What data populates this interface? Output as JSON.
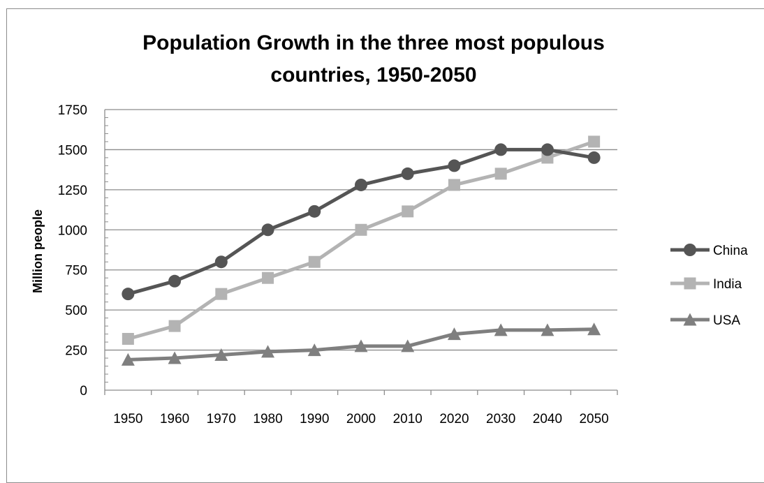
{
  "chart_data": {
    "type": "line",
    "title_lines": [
      "Population Growth in the three most populous",
      "countries, 1950-2050"
    ],
    "ylabel": "Million people",
    "xlabel": "",
    "ylim": [
      0,
      1750
    ],
    "yticks": [
      0,
      250,
      500,
      750,
      1000,
      1250,
      1500,
      1750
    ],
    "categories": [
      "1950",
      "1960",
      "1970",
      "1980",
      "1990",
      "2000",
      "2010",
      "2020",
      "2030",
      "2040",
      "2050"
    ],
    "grid": "horizontal major gridlines",
    "legend_position": "right",
    "series": [
      {
        "name": "China",
        "marker": "circle",
        "color": "#555555",
        "values": [
          600,
          680,
          800,
          1000,
          1115,
          1280,
          1350,
          1400,
          1500,
          1500,
          1450
        ]
      },
      {
        "name": "India",
        "marker": "square",
        "color": "#b3b3b3",
        "values": [
          320,
          400,
          600,
          700,
          800,
          1000,
          1115,
          1280,
          1350,
          1450,
          1550
        ]
      },
      {
        "name": "USA",
        "marker": "triangle",
        "color": "#7f7f7f",
        "values": [
          190,
          200,
          220,
          240,
          250,
          275,
          275,
          350,
          375,
          375,
          380
        ]
      }
    ]
  }
}
